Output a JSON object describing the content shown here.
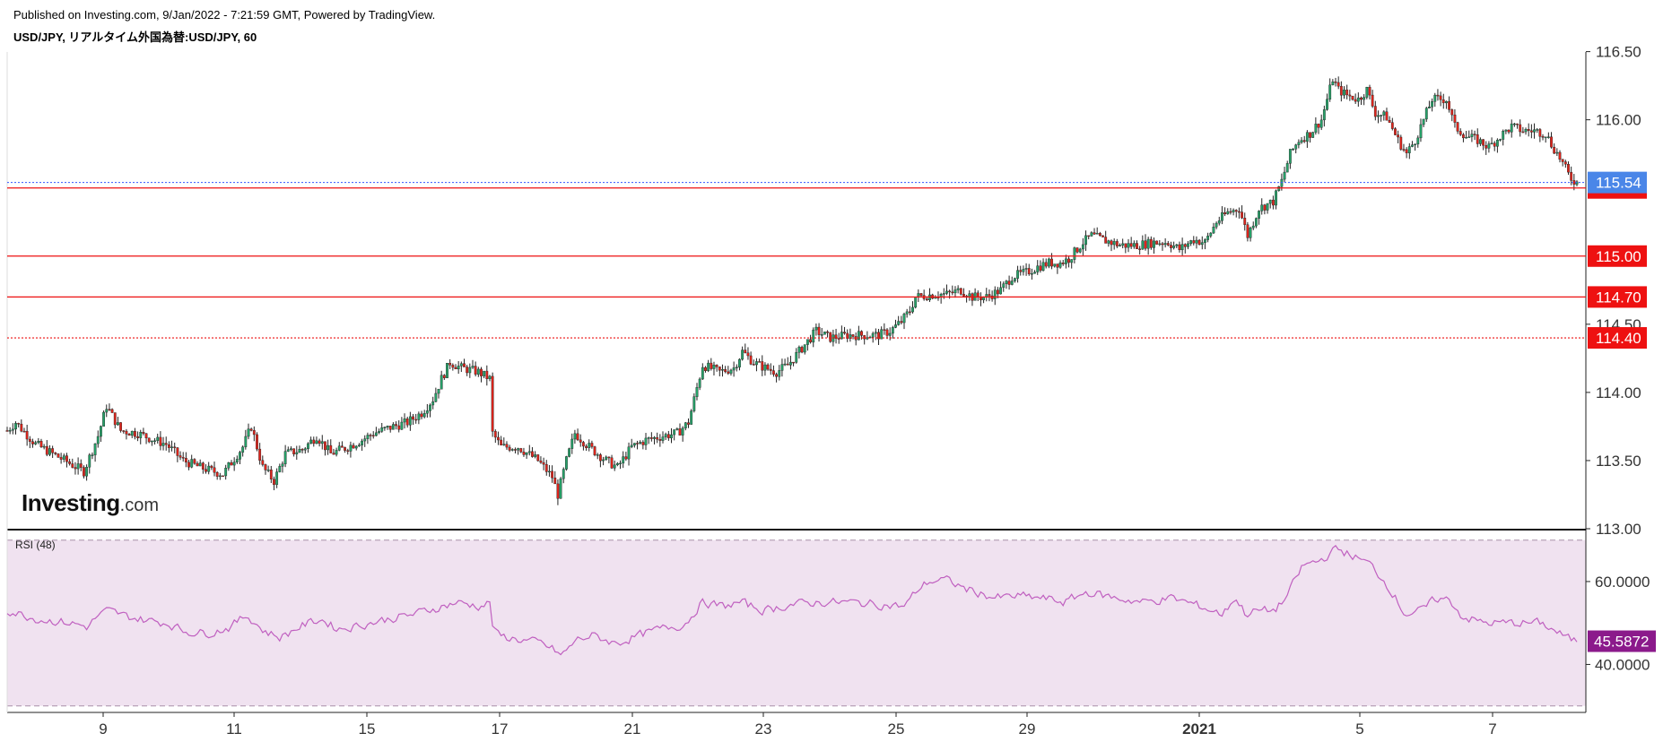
{
  "header": {
    "published": "Published on Investing.com, 9/Jan/2022 - 7:21:59 GMT, Powered by TradingView.",
    "symbol": "USD/JPY, リアルタイム外国為替:USD/JPY, 60"
  },
  "logo": {
    "brand": "Investing",
    "domain": ".com"
  },
  "colors": {
    "up": "#26a269",
    "down": "#e0241b",
    "level_line": "#ee1111",
    "last_price_line": "#3355ff",
    "last_price_badge": "#4a86e8",
    "rsi_line": "#c060c0",
    "rsi_band": "#f0e2f0",
    "rsi_badge": "#8b1a8b"
  },
  "chart_data": [
    {
      "type": "candlestick",
      "instrument": "USD/JPY",
      "interval": "60",
      "x_tick_labels": [
        "9",
        "11",
        "15",
        "17",
        "21",
        "23",
        "25",
        "29",
        "2021",
        "5",
        "7"
      ],
      "y_tick_labels": [
        "116.50",
        "116.00",
        "114.50",
        "114.00",
        "113.50",
        "113.00"
      ],
      "ylim": [
        113.0,
        116.55
      ],
      "last_price": 115.54,
      "horizontal_levels": [
        {
          "value": 115.5,
          "label": "115.50",
          "style": "solid"
        },
        {
          "value": 115.0,
          "label": "115.00",
          "style": "solid"
        },
        {
          "value": 114.7,
          "label": "114.70",
          "style": "solid"
        },
        {
          "value": 114.4,
          "label": "114.40",
          "style": "dotted"
        }
      ],
      "last_price_label": "115.54",
      "path": [
        [
          0,
          113.72
        ],
        [
          3,
          113.78
        ],
        [
          10,
          113.62
        ],
        [
          16,
          113.55
        ],
        [
          22,
          113.48
        ],
        [
          27,
          113.42
        ],
        [
          32,
          113.68
        ],
        [
          35,
          113.9
        ],
        [
          40,
          113.72
        ],
        [
          46,
          113.7
        ],
        [
          52,
          113.65
        ],
        [
          56,
          113.62
        ],
        [
          62,
          113.5
        ],
        [
          68,
          113.45
        ],
        [
          76,
          113.4
        ],
        [
          83,
          113.6
        ],
        [
          86,
          113.75
        ],
        [
          90,
          113.45
        ],
        [
          94,
          113.35
        ],
        [
          98,
          113.55
        ],
        [
          104,
          113.58
        ],
        [
          109,
          113.68
        ],
        [
          114,
          113.55
        ],
        [
          120,
          113.6
        ],
        [
          125,
          113.65
        ],
        [
          129,
          113.7
        ],
        [
          136,
          113.75
        ],
        [
          141,
          113.78
        ],
        [
          146,
          113.85
        ],
        [
          150,
          113.95
        ],
        [
          153,
          114.1
        ],
        [
          156,
          114.22
        ],
        [
          160,
          114.18
        ],
        [
          166,
          114.15
        ],
        [
          170,
          114.1
        ],
        [
          171,
          113.7
        ],
        [
          174,
          113.6
        ],
        [
          180,
          113.6
        ],
        [
          187,
          113.5
        ],
        [
          192,
          113.38
        ],
        [
          194,
          113.25
        ],
        [
          197,
          113.5
        ],
        [
          200,
          113.7
        ],
        [
          205,
          113.6
        ],
        [
          211,
          113.5
        ],
        [
          215,
          113.45
        ],
        [
          220,
          113.6
        ],
        [
          225,
          113.65
        ],
        [
          231,
          113.68
        ],
        [
          236,
          113.7
        ],
        [
          240,
          113.78
        ],
        [
          242,
          113.95
        ],
        [
          245,
          114.2
        ],
        [
          251,
          114.15
        ],
        [
          256,
          114.18
        ],
        [
          259,
          114.3
        ],
        [
          263,
          114.22
        ],
        [
          267,
          114.18
        ],
        [
          271,
          114.15
        ],
        [
          275,
          114.2
        ],
        [
          281,
          114.35
        ],
        [
          285,
          114.45
        ],
        [
          290,
          114.4
        ],
        [
          296,
          114.42
        ],
        [
          302,
          114.42
        ],
        [
          307,
          114.42
        ],
        [
          311,
          114.45
        ],
        [
          315,
          114.52
        ],
        [
          318,
          114.6
        ],
        [
          320,
          114.7
        ],
        [
          327,
          114.72
        ],
        [
          331,
          114.72
        ],
        [
          336,
          114.75
        ],
        [
          340,
          114.7
        ],
        [
          345,
          114.7
        ],
        [
          350,
          114.75
        ],
        [
          354,
          114.85
        ],
        [
          359,
          114.88
        ],
        [
          363,
          114.92
        ],
        [
          367,
          114.95
        ],
        [
          371,
          114.95
        ],
        [
          374,
          114.98
        ],
        [
          379,
          115.1
        ],
        [
          382,
          115.15
        ],
        [
          386,
          115.12
        ],
        [
          392,
          115.08
        ],
        [
          398,
          115.08
        ],
        [
          404,
          115.1
        ],
        [
          409,
          115.1
        ],
        [
          413,
          115.05
        ],
        [
          418,
          115.12
        ],
        [
          422,
          115.1
        ],
        [
          426,
          115.25
        ],
        [
          430,
          115.32
        ],
        [
          434,
          115.35
        ],
        [
          437,
          115.15
        ],
        [
          441,
          115.35
        ],
        [
          446,
          115.4
        ],
        [
          449,
          115.55
        ],
        [
          452,
          115.75
        ],
        [
          455,
          115.85
        ],
        [
          459,
          115.9
        ],
        [
          463,
          116.0
        ],
        [
          465,
          116.15
        ],
        [
          467,
          116.3
        ],
        [
          469,
          116.22
        ],
        [
          472,
          116.18
        ],
        [
          476,
          116.15
        ],
        [
          479,
          116.22
        ],
        [
          482,
          116.05
        ],
        [
          486,
          116.02
        ],
        [
          490,
          115.85
        ],
        [
          493,
          115.75
        ],
        [
          496,
          115.85
        ],
        [
          499,
          116.0
        ],
        [
          502,
          116.15
        ],
        [
          507,
          116.15
        ],
        [
          510,
          115.95
        ],
        [
          514,
          115.88
        ],
        [
          518,
          115.85
        ],
        [
          522,
          115.8
        ],
        [
          526,
          115.88
        ],
        [
          530,
          115.95
        ],
        [
          534,
          115.92
        ],
        [
          538,
          115.92
        ],
        [
          542,
          115.9
        ],
        [
          544,
          115.82
        ],
        [
          547,
          115.72
        ],
        [
          550,
          115.6
        ],
        [
          551,
          115.57
        ],
        [
          553,
          115.54
        ]
      ],
      "range": [
        0,
        553
      ]
    },
    {
      "type": "line",
      "name": "RSI (48)",
      "y_tick_labels": [
        "60.0000",
        "40.0000"
      ],
      "ylim": [
        29.5,
        69.5
      ],
      "band_lower": 30,
      "band_upper": 70,
      "last_value_label": "45.5872",
      "path": [
        [
          0,
          53.0
        ],
        [
          10,
          51.0
        ],
        [
          22,
          50.0
        ],
        [
          28,
          49.0
        ],
        [
          31,
          51.5
        ],
        [
          35,
          53.0
        ],
        [
          42,
          51.5
        ],
        [
          50,
          50.5
        ],
        [
          56,
          50.0
        ],
        [
          62,
          48.0
        ],
        [
          70,
          47.5
        ],
        [
          78,
          49.0
        ],
        [
          84,
          52.0
        ],
        [
          90,
          48.0
        ],
        [
          96,
          46.5
        ],
        [
          102,
          49.0
        ],
        [
          110,
          51.0
        ],
        [
          116,
          48.5
        ],
        [
          124,
          49.5
        ],
        [
          134,
          51.0
        ],
        [
          142,
          52.0
        ],
        [
          150,
          53.5
        ],
        [
          158,
          55.0
        ],
        [
          166,
          54.0
        ],
        [
          170,
          55.0
        ],
        [
          171,
          47.0
        ],
        [
          180,
          46.0
        ],
        [
          188,
          45.0
        ],
        [
          192,
          43.5
        ],
        [
          195,
          42.0
        ],
        [
          200,
          46.0
        ],
        [
          206,
          47.0
        ],
        [
          214,
          45.0
        ],
        [
          222,
          47.0
        ],
        [
          232,
          49.0
        ],
        [
          238,
          49.5
        ],
        [
          241,
          52.0
        ],
        [
          244,
          55.0
        ],
        [
          252,
          54.0
        ],
        [
          258,
          55.0
        ],
        [
          266,
          53.0
        ],
        [
          276,
          54.5
        ],
        [
          286,
          55.0
        ],
        [
          296,
          55.0
        ],
        [
          306,
          54.5
        ],
        [
          316,
          54.0
        ],
        [
          320,
          58.0
        ],
        [
          324,
          60.0
        ],
        [
          330,
          60.5
        ],
        [
          338,
          58.0
        ],
        [
          348,
          56.0
        ],
        [
          356,
          56.5
        ],
        [
          364,
          56.0
        ],
        [
          372,
          55.0
        ],
        [
          380,
          57.5
        ],
        [
          390,
          56.0
        ],
        [
          400,
          55.0
        ],
        [
          410,
          56.0
        ],
        [
          420,
          54.0
        ],
        [
          428,
          52.0
        ],
        [
          432,
          56.5
        ],
        [
          436,
          52.0
        ],
        [
          440,
          53.0
        ],
        [
          446,
          53.0
        ],
        [
          450,
          56.0
        ],
        [
          456,
          64.0
        ],
        [
          462,
          65.0
        ],
        [
          468,
          68.0
        ],
        [
          474,
          66.0
        ],
        [
          480,
          64.0
        ],
        [
          487,
          58.0
        ],
        [
          492,
          52.0
        ],
        [
          498,
          53.0
        ],
        [
          503,
          56.0
        ],
        [
          508,
          55.5
        ],
        [
          512,
          51.5
        ],
        [
          520,
          50.0
        ],
        [
          530,
          50.0
        ],
        [
          540,
          50.0
        ],
        [
          545,
          48.0
        ],
        [
          550,
          46.0
        ],
        [
          553,
          45.6
        ]
      ],
      "range": [
        0,
        553
      ]
    }
  ]
}
